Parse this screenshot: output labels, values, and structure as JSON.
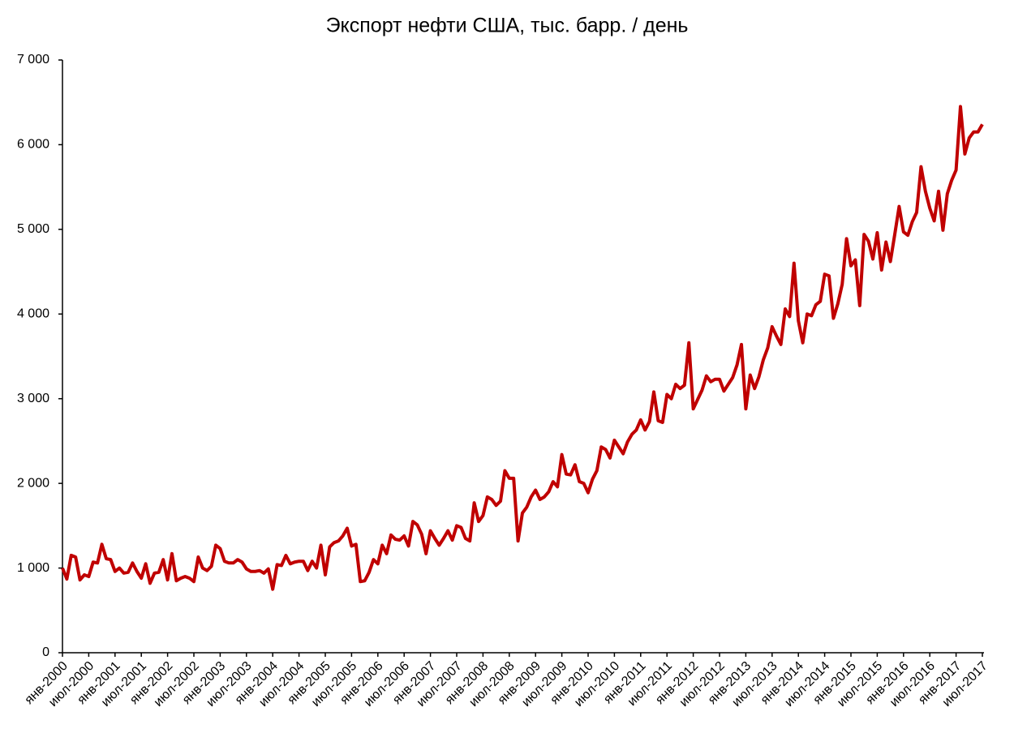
{
  "chart_data": {
    "type": "line",
    "title": "Экспорт нефти США, тыс. барр. / день",
    "categories": [
      "янв-2000",
      null,
      null,
      null,
      null,
      null,
      "июл-2000",
      null,
      null,
      null,
      null,
      null,
      "янв-2001",
      null,
      null,
      null,
      null,
      null,
      "июл-2001",
      null,
      null,
      null,
      null,
      null,
      "янв-2002",
      null,
      null,
      null,
      null,
      null,
      "июл-2002",
      null,
      null,
      null,
      null,
      null,
      "янв-2003",
      null,
      null,
      null,
      null,
      null,
      "июл-2003",
      null,
      null,
      null,
      null,
      null,
      "янв-2004",
      null,
      null,
      null,
      null,
      null,
      "июл-2004",
      null,
      null,
      null,
      null,
      null,
      "янв-2005",
      null,
      null,
      null,
      null,
      null,
      "июл-2005",
      null,
      null,
      null,
      null,
      null,
      "янв-2006",
      null,
      null,
      null,
      null,
      null,
      "июл-2006",
      null,
      null,
      null,
      null,
      null,
      "янв-2007",
      null,
      null,
      null,
      null,
      null,
      "июл-2007",
      null,
      null,
      null,
      null,
      null,
      "янв-2008",
      null,
      null,
      null,
      null,
      null,
      "июл-2008",
      null,
      null,
      null,
      null,
      null,
      "янв-2009",
      null,
      null,
      null,
      null,
      null,
      "июл-2009",
      null,
      null,
      null,
      null,
      null,
      "янв-2010",
      null,
      null,
      null,
      null,
      null,
      "июл-2010",
      null,
      null,
      null,
      null,
      null,
      "янв-2011",
      null,
      null,
      null,
      null,
      null,
      "июл-2011",
      null,
      null,
      null,
      null,
      null,
      "янв-2012",
      null,
      null,
      null,
      null,
      null,
      "июл-2012",
      null,
      null,
      null,
      null,
      null,
      "янв-2013",
      null,
      null,
      null,
      null,
      null,
      "июл-2013",
      null,
      null,
      null,
      null,
      null,
      "янв-2014",
      null,
      null,
      null,
      null,
      null,
      "июл-2014",
      null,
      null,
      null,
      null,
      null,
      "янв-2015",
      null,
      null,
      null,
      null,
      null,
      "июл-2015",
      null,
      null,
      null,
      null,
      null,
      "янв-2016",
      null,
      null,
      null,
      null,
      null,
      "июл-2016",
      null,
      null,
      null,
      null,
      null,
      "янв-2017",
      null,
      null,
      null,
      null,
      null,
      "июл-2017"
    ],
    "values": [
      1000,
      870,
      1150,
      1130,
      860,
      920,
      900,
      1070,
      1060,
      1280,
      1110,
      1100,
      960,
      1000,
      940,
      950,
      1060,
      960,
      880,
      1050,
      820,
      940,
      950,
      1100,
      860,
      1170,
      850,
      880,
      900,
      880,
      840,
      1130,
      1000,
      970,
      1020,
      1270,
      1230,
      1080,
      1060,
      1060,
      1100,
      1070,
      990,
      960,
      960,
      970,
      940,
      990,
      750,
      1040,
      1030,
      1150,
      1050,
      1070,
      1080,
      1080,
      970,
      1080,
      1000,
      1270,
      920,
      1250,
      1300,
      1320,
      1380,
      1470,
      1260,
      1280,
      840,
      850,
      950,
      1100,
      1050,
      1270,
      1170,
      1390,
      1340,
      1330,
      1380,
      1260,
      1550,
      1510,
      1400,
      1170,
      1440,
      1350,
      1270,
      1350,
      1440,
      1330,
      1500,
      1480,
      1350,
      1320,
      1770,
      1550,
      1620,
      1840,
      1810,
      1740,
      1790,
      2150,
      2060,
      2060,
      1320,
      1650,
      1720,
      1840,
      1920,
      1810,
      1840,
      1900,
      2020,
      1960,
      2340,
      2110,
      2100,
      2220,
      2020,
      2000,
      1890,
      2050,
      2150,
      2430,
      2400,
      2300,
      2510,
      2430,
      2350,
      2490,
      2580,
      2630,
      2750,
      2630,
      2730,
      3080,
      2740,
      2720,
      3050,
      3000,
      3170,
      3120,
      3160,
      3660,
      2880,
      2990,
      3100,
      3270,
      3200,
      3230,
      3230,
      3090,
      3170,
      3250,
      3400,
      3640,
      2880,
      3280,
      3120,
      3260,
      3460,
      3600,
      3850,
      3740,
      3640,
      4060,
      3970,
      4600,
      3920,
      3660,
      4000,
      3980,
      4110,
      4150,
      4470,
      4450,
      3950,
      4120,
      4350,
      4890,
      4570,
      4640,
      4100,
      4940,
      4860,
      4650,
      4960,
      4520,
      4850,
      4620,
      4940,
      5270,
      4970,
      4930,
      5090,
      5200,
      5740,
      5450,
      5250,
      5100,
      5450,
      4990,
      5420,
      5580,
      5700,
      6450,
      5890,
      6080,
      6150,
      6150,
      6240
    ],
    "color": "#c00000",
    "ylim": [
      0,
      7000
    ],
    "yticks": [
      0,
      {
        "value": 1000,
        "label": "1 000"
      },
      {
        "value": 2000,
        "label": "2 000"
      },
      {
        "value": 3000,
        "label": "3 000"
      },
      {
        "value": 4000,
        "label": "4 000"
      },
      {
        "value": 5000,
        "label": "5 000"
      },
      {
        "value": 6000,
        "label": "6 000"
      },
      {
        "value": 7000,
        "label": "7 000"
      }
    ],
    "grid": false
  }
}
